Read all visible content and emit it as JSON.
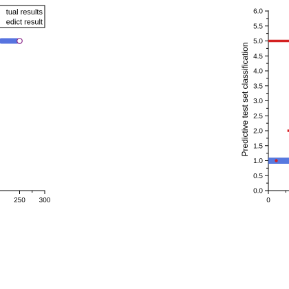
{
  "chart_data": [
    {
      "type": "scatter",
      "title": "",
      "xlabel": "",
      "ylabel": "",
      "x_ticks": [
        "250",
        "300"
      ],
      "xlim": [
        211,
        300
      ],
      "ylim": [
        0,
        6
      ],
      "legend": {
        "placement": "top-left",
        "entries": [
          "Actual results",
          "Predict result"
        ]
      },
      "legend_visible_text": [
        "tual results",
        "edict result"
      ],
      "series": [
        {
          "name": "Actual results",
          "points": [
            [
              250,
              5.0
            ]
          ]
        },
        {
          "name": "Predict result",
          "points": [
            [
              250,
              5.0
            ]
          ]
        }
      ],
      "colors": {
        "actual": "#3a5ad9",
        "predict": "#8a2a8a"
      }
    },
    {
      "type": "scatter",
      "title": "",
      "xlabel": "",
      "ylabel": "Predictive test set classification",
      "x_ticks": [
        "0"
      ],
      "y_ticks": [
        "0.0",
        "0.5",
        "1.0",
        "1.5",
        "2.0",
        "2.5",
        "3.0",
        "3.5",
        "4.0",
        "4.5",
        "5.0",
        "5.5",
        "6.0"
      ],
      "xlim": [
        0,
        13
      ],
      "ylim": [
        0,
        6
      ],
      "series": [
        {
          "name": "",
          "color": "#d42020",
          "segments": [
            [
              0,
              5.0,
              13,
              5.0
            ],
            [
              12,
              2.0,
              13,
              2.0
            ]
          ]
        },
        {
          "name": "",
          "color": "#3a62d9",
          "band": [
            0,
            1.0,
            13,
            1.0
          ]
        },
        {
          "name": "",
          "color": "#d42020",
          "points": [
            [
              5,
              1.0
            ]
          ]
        }
      ]
    }
  ]
}
